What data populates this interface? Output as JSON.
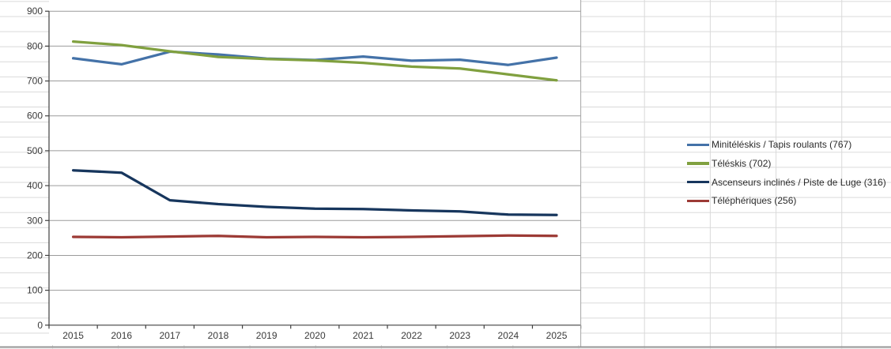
{
  "chart_data": {
    "type": "line",
    "title": "",
    "categories": [
      "2015",
      "2016",
      "2017",
      "2018",
      "2019",
      "2020",
      "2021",
      "2022",
      "2023",
      "2024",
      "2025"
    ],
    "series": [
      {
        "name": "Minitéléskis / Tapis roulants (767)",
        "color": "#4472a8",
        "values": [
          765,
          748,
          784,
          776,
          764,
          760,
          770,
          758,
          761,
          746,
          767
        ]
      },
      {
        "name": "Téléskis (702)",
        "color": "#80a03f",
        "values": [
          813,
          803,
          785,
          769,
          763,
          759,
          752,
          741,
          736,
          719,
          702
        ]
      },
      {
        "name": "Ascenseurs inclinés / Piste de Luge (316)",
        "color": "#17365d",
        "values": [
          444,
          437,
          358,
          347,
          339,
          334,
          333,
          329,
          326,
          317,
          316
        ]
      },
      {
        "name": "Téléphériques (256)",
        "color": "#9c3a35",
        "values": [
          253,
          252,
          254,
          256,
          252,
          253,
          252,
          253,
          255,
          257,
          256
        ]
      }
    ],
    "ylim": [
      0,
      900
    ],
    "ytick_step": 100,
    "y_tick_labels": [
      "0",
      "100",
      "200",
      "300",
      "400",
      "500",
      "600",
      "700",
      "800",
      "900"
    ],
    "grid": true,
    "legend_position": "right"
  },
  "colors": {
    "chart_gridline": "#9b9b9b",
    "axis_line": "#404040",
    "sheet_gridline": "#d9d9d9",
    "plot_background": "#ffffff",
    "outer_border": "#8c8c8c",
    "label_text": "#3a3a3a"
  }
}
